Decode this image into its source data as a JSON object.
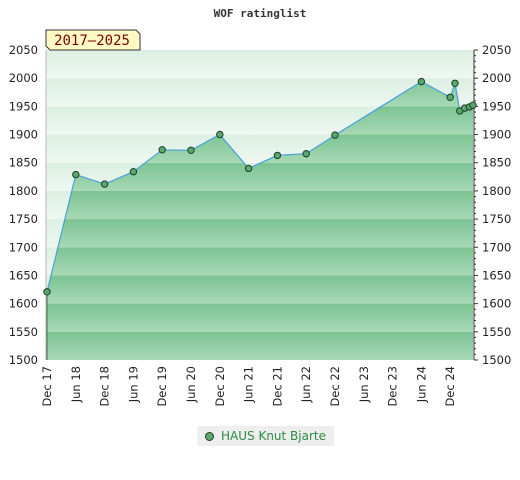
{
  "chart_data": {
    "type": "area",
    "title": "WOF ratinglist",
    "badge": "2017–2025",
    "ylim": [
      1500,
      2050
    ],
    "yticks": [
      1500,
      1550,
      1600,
      1650,
      1700,
      1750,
      1800,
      1850,
      1900,
      1950,
      2000,
      2050
    ],
    "xlim": [
      "2017-12",
      "2025-03"
    ],
    "xticks": [
      "Dec 17",
      "Jun 18",
      "Dec 18",
      "Jun 19",
      "Dec 19",
      "Jun 20",
      "Dec 20",
      "Jun 21",
      "Dec 21",
      "Jun 22",
      "Dec 22",
      "Jun 23",
      "Dec 23",
      "Jun 24",
      "Dec 24"
    ],
    "grid": true,
    "legend_position": "bottom",
    "series": [
      {
        "name": "HAUS Knut Bjarte",
        "color": "#4aa0d8",
        "points": [
          {
            "x": "2017-12",
            "y": 1621
          },
          {
            "x": "2018-06",
            "y": 1829
          },
          {
            "x": "2018-12",
            "y": 1812
          },
          {
            "x": "2019-06",
            "y": 1834
          },
          {
            "x": "2019-12",
            "y": 1873
          },
          {
            "x": "2020-06",
            "y": 1872
          },
          {
            "x": "2020-12",
            "y": 1900
          },
          {
            "x": "2021-06",
            "y": 1840
          },
          {
            "x": "2021-12",
            "y": 1863
          },
          {
            "x": "2022-06",
            "y": 1866
          },
          {
            "x": "2022-12",
            "y": 1899
          },
          {
            "x": "2024-06",
            "y": 1994
          },
          {
            "x": "2024-12",
            "y": 1966
          },
          {
            "x": "2025-01",
            "y": 1991
          },
          {
            "x": "2025-02",
            "y": 1942
          },
          {
            "x": "2025-03",
            "y": 1947
          },
          {
            "x": "2025-04",
            "y": 1949
          },
          {
            "x": "2025-05",
            "y": 1952
          }
        ]
      }
    ]
  }
}
